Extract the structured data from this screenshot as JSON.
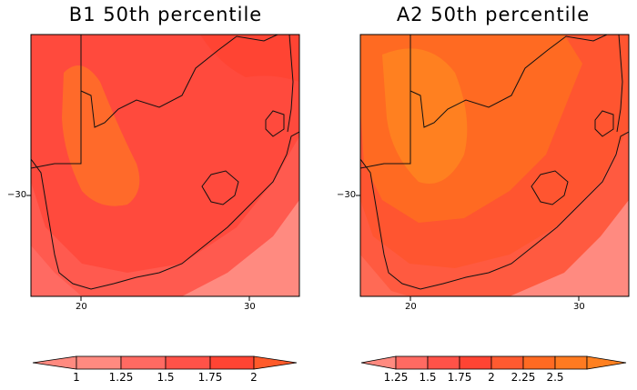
{
  "panels": [
    {
      "title": "B1 50th percentile",
      "lon_ticks": [
        "20",
        "30"
      ],
      "lat_ticks": [
        "−30"
      ],
      "colorbar_labels": [
        "1",
        "1.25",
        "1.5",
        "1.75",
        "2"
      ],
      "colors": {
        "c1": "#ff8a80",
        "c2": "#ff6a62",
        "c3": "#ff5248",
        "c4": "#ff4433",
        "c5": "#ff6f25"
      }
    },
    {
      "title": "A2 50th percentile",
      "lon_ticks": [
        "20",
        "30"
      ],
      "lat_ticks": [
        "−30"
      ],
      "colorbar_labels": [
        "1.25",
        "1.5",
        "1.75",
        "2",
        "2.25",
        "2.5"
      ],
      "colors": {
        "c1": "#ff8a80",
        "c2": "#ff5a52",
        "c3": "#ff4a3c",
        "c4": "#ff5530",
        "c5": "#ff6a22",
        "c6": "#ff8020"
      }
    }
  ]
}
